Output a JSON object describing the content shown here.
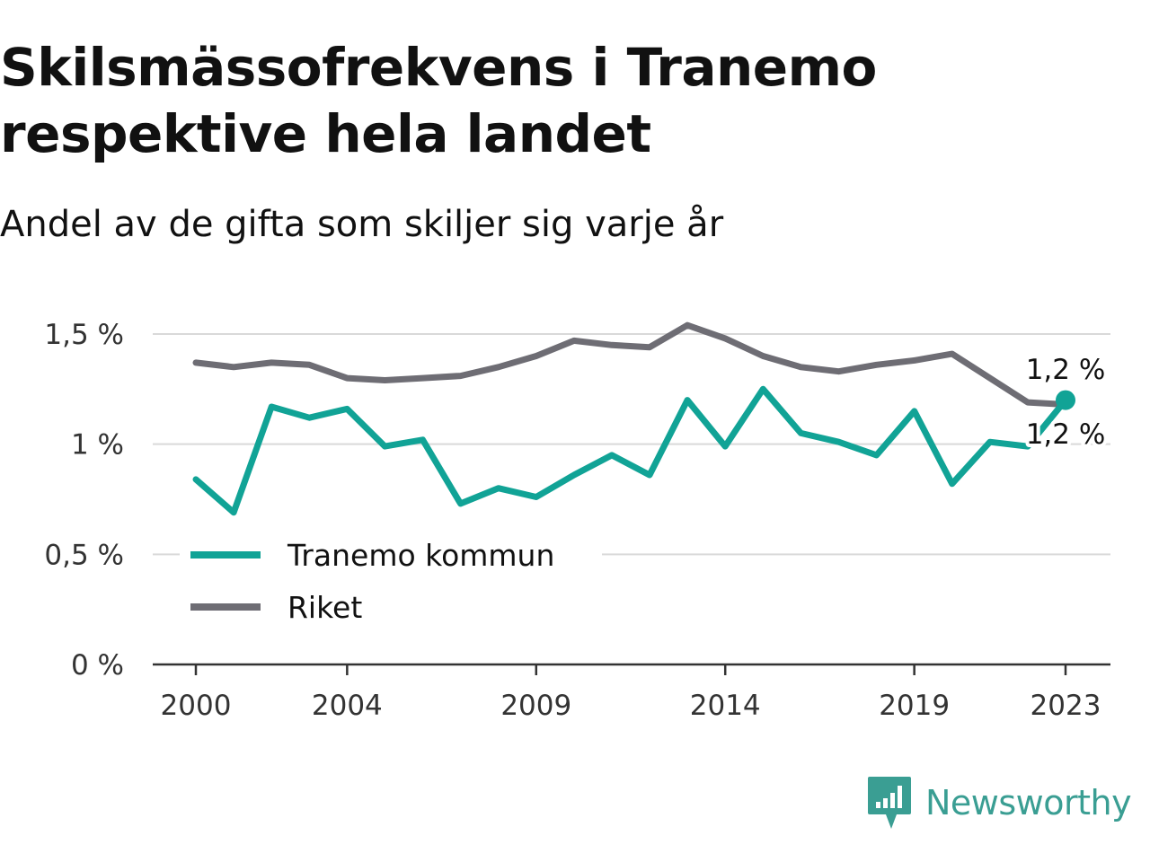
{
  "title": "Skilsmässofrekvens i Tranemo respektive hela landet",
  "subtitle": "Andel av de gifta som skiljer sig varje år",
  "brand": {
    "name": "Newsworthy",
    "logo_icon": "newsworthy-chart-bubble-icon",
    "color": "#3a9e93"
  },
  "chart_data": {
    "type": "line",
    "x": [
      2000,
      2001,
      2002,
      2003,
      2004,
      2005,
      2006,
      2007,
      2008,
      2009,
      2010,
      2011,
      2012,
      2013,
      2014,
      2015,
      2016,
      2017,
      2018,
      2019,
      2020,
      2021,
      2022,
      2023
    ],
    "x_ticks": [
      2000,
      2004,
      2009,
      2014,
      2019,
      2023
    ],
    "x_tick_labels": [
      "2000",
      "2004",
      "2009",
      "2014",
      "2019",
      "2023"
    ],
    "xlim": [
      2000,
      2023
    ],
    "ylim": [
      0,
      1.5
    ],
    "y_ticks": [
      0,
      0.5,
      1,
      1.5
    ],
    "y_tick_labels": [
      "0 %",
      "0,5 %",
      "1 %",
      "1,5 %"
    ],
    "grid": true,
    "legend": "bottom-left",
    "series": [
      {
        "name": "Tranemo kommun",
        "color": "#11a396",
        "values": [
          0.84,
          0.69,
          1.17,
          1.12,
          1.16,
          0.99,
          1.02,
          0.73,
          0.8,
          0.76,
          0.86,
          0.95,
          0.86,
          1.2,
          0.99,
          1.25,
          1.05,
          1.01,
          0.95,
          1.15,
          0.82,
          1.01,
          0.99,
          1.2
        ],
        "end_label": "1,2 %"
      },
      {
        "name": "Riket",
        "color": "#6e6d74",
        "values": [
          1.37,
          1.35,
          1.37,
          1.36,
          1.3,
          1.29,
          1.3,
          1.31,
          1.35,
          1.4,
          1.47,
          1.45,
          1.44,
          1.54,
          1.48,
          1.4,
          1.35,
          1.33,
          1.36,
          1.38,
          1.41,
          1.3,
          1.19,
          1.18
        ],
        "end_label": "1,2 %"
      }
    ]
  }
}
